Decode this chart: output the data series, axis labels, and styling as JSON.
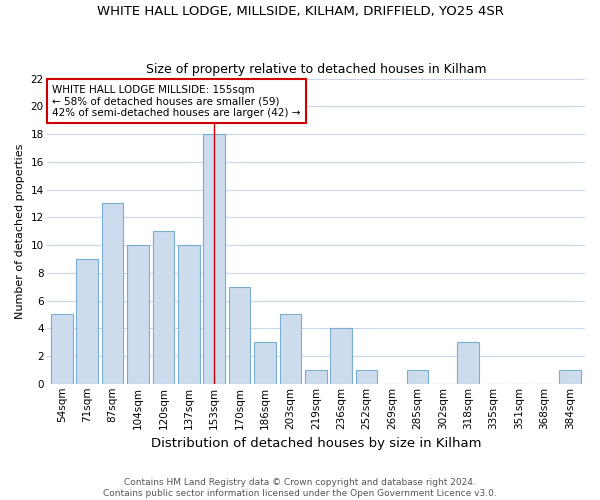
{
  "title": "WHITE HALL LODGE, MILLSIDE, KILHAM, DRIFFIELD, YO25 4SR",
  "subtitle": "Size of property relative to detached houses in Kilham",
  "xlabel": "Distribution of detached houses by size in Kilham",
  "ylabel": "Number of detached properties",
  "categories": [
    "54sqm",
    "71sqm",
    "87sqm",
    "104sqm",
    "120sqm",
    "137sqm",
    "153sqm",
    "170sqm",
    "186sqm",
    "203sqm",
    "219sqm",
    "236sqm",
    "252sqm",
    "269sqm",
    "285sqm",
    "302sqm",
    "318sqm",
    "335sqm",
    "351sqm",
    "368sqm",
    "384sqm"
  ],
  "values": [
    5,
    9,
    13,
    10,
    11,
    10,
    18,
    7,
    3,
    5,
    1,
    4,
    1,
    0,
    1,
    0,
    3,
    0,
    0,
    0,
    1
  ],
  "bar_color": "#ccdcec",
  "bar_edge_color": "#7aaed0",
  "highlight_index": 6,
  "highlight_line_color": "#cc0000",
  "annotation_text": "WHITE HALL LODGE MILLSIDE: 155sqm\n← 58% of detached houses are smaller (59)\n42% of semi-detached houses are larger (42) →",
  "annotation_box_color": "#ffffff",
  "annotation_box_edge_color": "#cc0000",
  "ylim": [
    0,
    22
  ],
  "yticks": [
    0,
    2,
    4,
    6,
    8,
    10,
    12,
    14,
    16,
    18,
    20,
    22
  ],
  "footer": "Contains HM Land Registry data © Crown copyright and database right 2024.\nContains public sector information licensed under the Open Government Licence v3.0.",
  "bg_color": "#ffffff",
  "plot_bg_color": "#ffffff",
  "grid_color": "#c8d8e8",
  "title_fontsize": 9.5,
  "subtitle_fontsize": 9,
  "xlabel_fontsize": 9.5,
  "ylabel_fontsize": 8,
  "tick_fontsize": 7.5,
  "footer_fontsize": 6.5
}
